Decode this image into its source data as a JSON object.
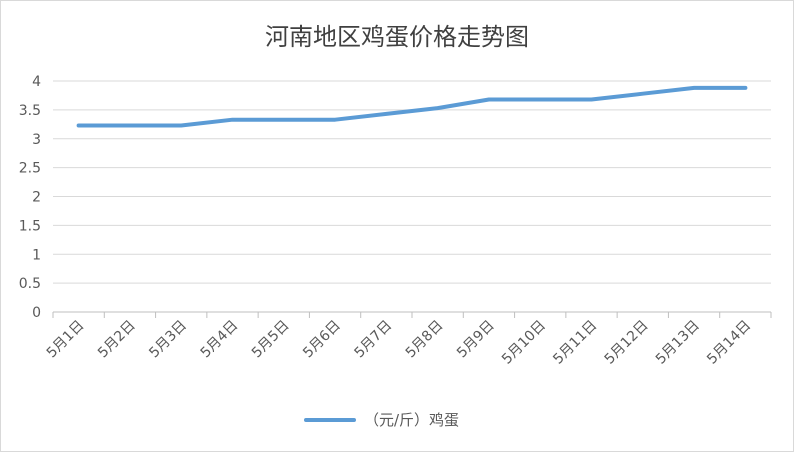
{
  "chart_data": {
    "type": "line",
    "title": "河南地区鸡蛋价格走势图",
    "xlabel": "",
    "ylabel": "",
    "categories": [
      "5月1日",
      "5月2日",
      "5月3日",
      "5月4日",
      "5月5日",
      "5月6日",
      "5月7日",
      "5月8日",
      "5月9日",
      "5月10日",
      "5月11日",
      "5月12日",
      "5月13日",
      "5月14日"
    ],
    "series": [
      {
        "name": "（元/斤）鸡蛋",
        "color": "#5b9bd5",
        "values": [
          3.23,
          3.23,
          3.23,
          3.33,
          3.33,
          3.33,
          3.43,
          3.53,
          3.68,
          3.68,
          3.68,
          3.78,
          3.88,
          3.88
        ]
      }
    ],
    "ylim": [
      0,
      4
    ],
    "yticks": [
      "0",
      "0.5",
      "1",
      "1.5",
      "2",
      "2.5",
      "3",
      "3.5",
      "4"
    ],
    "grid": true,
    "legend_position": "bottom"
  }
}
